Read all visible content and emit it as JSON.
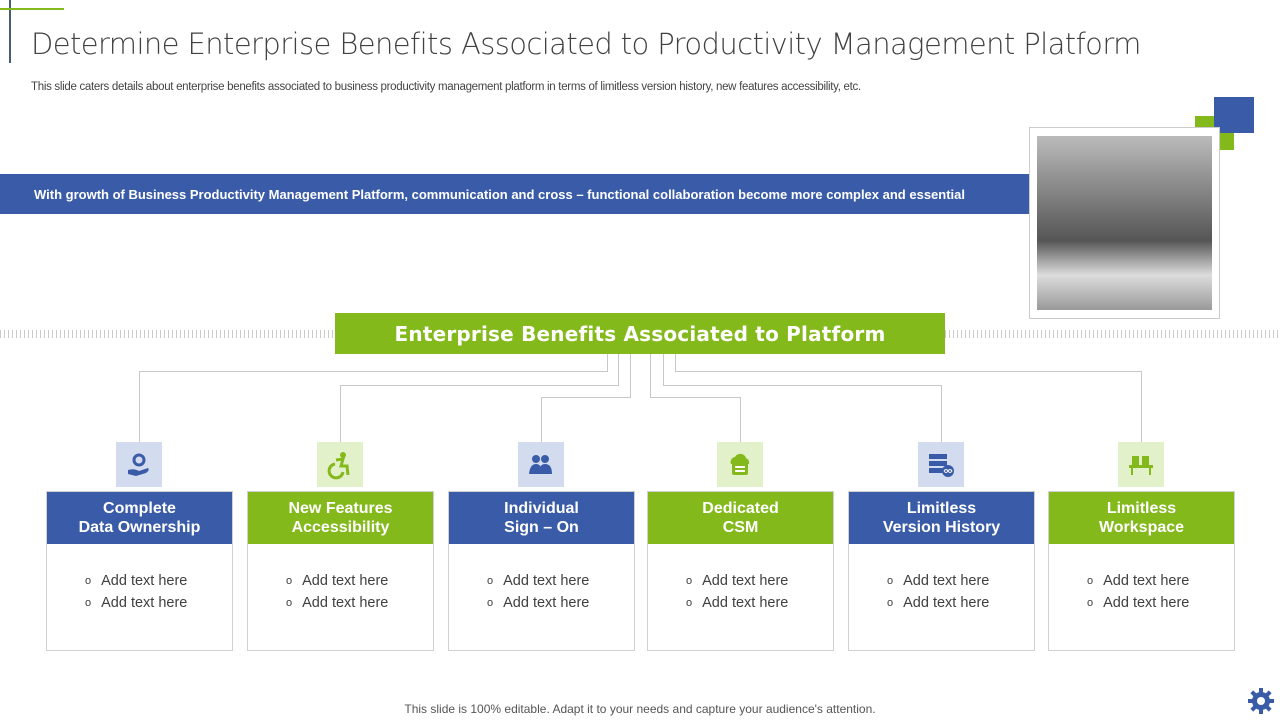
{
  "title": "Determine Enterprise Benefits Associated to Productivity Management Platform",
  "subtitle": "This slide caters details about enterprise benefits associated to business productivity management platform in terms of limitless version history, new features accessibility, etc.",
  "banner": "With growth of Business Productivity Management Platform, communication and cross – functional collaboration become more complex and essential",
  "hub": "Enterprise Benefits Associated to Platform",
  "colors": {
    "blue": "#3a5ca8",
    "green": "#84b91c"
  },
  "cards": [
    {
      "l1": "Complete",
      "l2": "Data Ownership",
      "icon": "hand-gear-icon",
      "color": "blue",
      "items": [
        "Add text here",
        "Add text here"
      ]
    },
    {
      "l1": "New Features",
      "l2": "Accessibility",
      "icon": "accessibility-icon",
      "color": "green",
      "items": [
        "Add text here",
        "Add text here"
      ]
    },
    {
      "l1": "Individual",
      "l2": "Sign – On",
      "icon": "users-icon",
      "color": "blue",
      "items": [
        "Add text here",
        "Add text here"
      ]
    },
    {
      "l1": "Dedicated",
      "l2": "CSM",
      "icon": "cloud-server-icon",
      "color": "green",
      "items": [
        "Add text here",
        "Add text here"
      ]
    },
    {
      "l1": "Limitless",
      "l2": "Version History",
      "icon": "server-infinity-icon",
      "color": "blue",
      "items": [
        "Add text here",
        "Add text here"
      ]
    },
    {
      "l1": "Limitless",
      "l2": "Workspace",
      "icon": "desk-chairs-icon",
      "color": "green",
      "items": [
        "Add text here",
        "Add text here"
      ]
    }
  ],
  "footer": "This slide is 100% editable. Adapt it to your needs and capture your audience's attention."
}
